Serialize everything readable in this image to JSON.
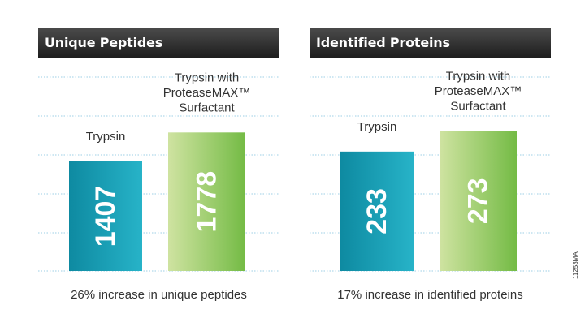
{
  "chart_data": [
    {
      "type": "bar",
      "title": "Unique Peptides",
      "categories": [
        "Trypsin",
        "Trypsin with ProteaseMAX™ Surfactant"
      ],
      "category_lines": [
        [
          "Trypsin"
        ],
        [
          "Trypsin with",
          "ProteaseMAX™",
          "Surfactant"
        ]
      ],
      "values": [
        1407,
        1778
      ],
      "value_labels": [
        "1407",
        "1778"
      ],
      "ylim": [
        0,
        2500
      ],
      "grid": true,
      "caption": "26% increase in unique peptides",
      "colors": [
        [
          "#0e8aa1",
          "#27b3c8"
        ],
        [
          "#cfe3a1",
          "#74bb45"
        ]
      ]
    },
    {
      "type": "bar",
      "title": "Identified Proteins",
      "categories": [
        "Trypsin",
        "Trypsin with ProteaseMAX™ Surfactant"
      ],
      "category_lines": [
        [
          "Trypsin"
        ],
        [
          "Trypsin with",
          "ProteaseMAX™",
          "Surfactant"
        ]
      ],
      "values": [
        233,
        273
      ],
      "value_labels": [
        "233",
        "273"
      ],
      "ylim": [
        0,
        380
      ],
      "grid": true,
      "caption": "17% increase in identified proteins",
      "colors": [
        [
          "#0e8aa1",
          "#27b3c8"
        ],
        [
          "#cfe3a1",
          "#74bb45"
        ]
      ]
    }
  ],
  "figure_code": "11253MA"
}
